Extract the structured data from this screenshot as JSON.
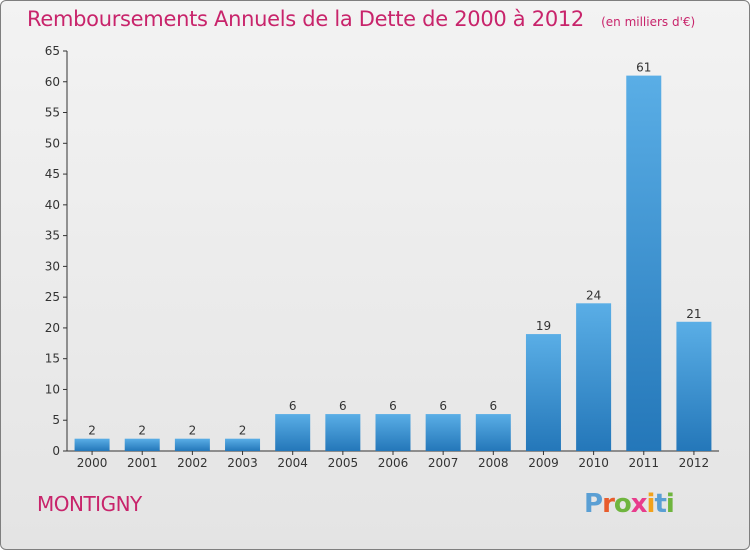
{
  "header": {
    "title": "Remboursements Annuels de la Dette de 2000 à 2012",
    "unit": "(en milliers d'€)"
  },
  "footer": {
    "town": "MONTIGNY",
    "logo_text": "Proxiti"
  },
  "colors": {
    "title": "#c8246b",
    "bar_top": "#5aaee6",
    "bar_bottom": "#2477b9",
    "logo": [
      "#5a9fd4",
      "#e85c2c",
      "#6fb53e",
      "#e83c8c",
      "#f2a21c",
      "#5a9fd4",
      "#6fb53e"
    ]
  },
  "chart_data": {
    "type": "bar",
    "categories": [
      "2000",
      "2001",
      "2002",
      "2003",
      "2004",
      "2005",
      "2006",
      "2007",
      "2008",
      "2009",
      "2010",
      "2011",
      "2012"
    ],
    "values": [
      2,
      2,
      2,
      2,
      6,
      6,
      6,
      6,
      6,
      19,
      24,
      61,
      21
    ],
    "data_labels": [
      "2",
      "2",
      "2",
      "2",
      "6",
      "6",
      "6",
      "6",
      "6",
      "19",
      "24",
      "61",
      "21"
    ],
    "yticks": [
      0,
      5,
      10,
      15,
      20,
      25,
      30,
      35,
      40,
      45,
      50,
      55,
      60,
      65
    ],
    "ylim": [
      0,
      65
    ],
    "grid": false,
    "legend": "none"
  }
}
